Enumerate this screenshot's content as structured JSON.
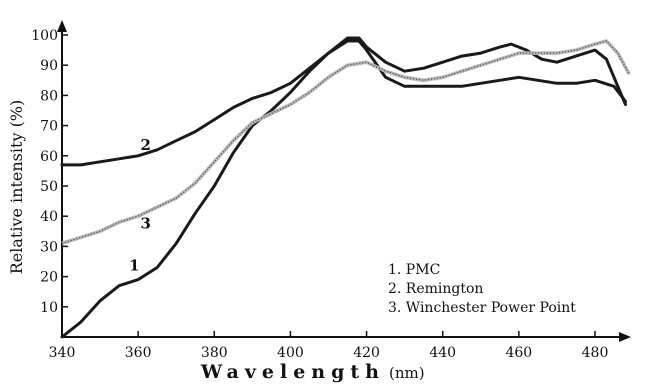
{
  "chart_data": {
    "type": "line",
    "title": "",
    "xlabel": "Wavelength",
    "xlabel_unit": "(nm)",
    "ylabel": "Relative intensity (%)",
    "xlim": [
      340,
      490
    ],
    "ylim": [
      0,
      100
    ],
    "x_ticks": [
      340,
      360,
      380,
      400,
      420,
      440,
      460,
      480
    ],
    "y_ticks": [
      10,
      20,
      30,
      40,
      50,
      60,
      70,
      80,
      90,
      100
    ],
    "grid": false,
    "legend_position": "bottom-right",
    "legend": [
      "1. PMC",
      "2. Remington",
      "3. Winchester Power Point"
    ],
    "series": [
      {
        "name": "1",
        "color": "#1a1a1a",
        "style": "solid",
        "label_point": [
          359,
          22
        ],
        "points": [
          [
            340,
            0
          ],
          [
            345,
            5
          ],
          [
            350,
            12
          ],
          [
            355,
            17
          ],
          [
            360,
            19
          ],
          [
            365,
            23
          ],
          [
            370,
            31
          ],
          [
            375,
            41
          ],
          [
            380,
            50
          ],
          [
            385,
            61
          ],
          [
            390,
            70
          ],
          [
            395,
            75
          ],
          [
            400,
            81
          ],
          [
            405,
            88
          ],
          [
            410,
            94
          ],
          [
            415,
            99
          ],
          [
            418,
            99
          ],
          [
            420,
            96
          ],
          [
            425,
            91
          ],
          [
            430,
            88
          ],
          [
            435,
            89
          ],
          [
            440,
            91
          ],
          [
            445,
            93
          ],
          [
            450,
            94
          ],
          [
            455,
            96
          ],
          [
            458,
            97
          ],
          [
            462,
            95
          ],
          [
            466,
            92
          ],
          [
            470,
            91
          ],
          [
            475,
            93
          ],
          [
            480,
            95
          ],
          [
            483,
            92
          ],
          [
            486,
            83
          ],
          [
            488,
            77
          ]
        ]
      },
      {
        "name": "2",
        "color": "#1a1a1a",
        "style": "solid",
        "label_point": [
          362,
          62
        ],
        "points": [
          [
            340,
            57
          ],
          [
            345,
            57
          ],
          [
            350,
            58
          ],
          [
            355,
            59
          ],
          [
            360,
            60
          ],
          [
            365,
            62
          ],
          [
            370,
            65
          ],
          [
            375,
            68
          ],
          [
            380,
            72
          ],
          [
            385,
            76
          ],
          [
            390,
            79
          ],
          [
            395,
            81
          ],
          [
            400,
            84
          ],
          [
            405,
            89
          ],
          [
            410,
            94
          ],
          [
            415,
            98
          ],
          [
            418,
            98
          ],
          [
            420,
            95
          ],
          [
            425,
            86
          ],
          [
            430,
            83
          ],
          [
            435,
            83
          ],
          [
            440,
            83
          ],
          [
            445,
            83
          ],
          [
            450,
            84
          ],
          [
            455,
            85
          ],
          [
            460,
            86
          ],
          [
            465,
            85
          ],
          [
            470,
            84
          ],
          [
            475,
            84
          ],
          [
            480,
            85
          ],
          [
            485,
            83
          ],
          [
            488,
            78
          ]
        ]
      },
      {
        "name": "3",
        "color": "#8a8a8a",
        "style": "dotted",
        "label_point": [
          362,
          36
        ],
        "points": [
          [
            340,
            31
          ],
          [
            345,
            33
          ],
          [
            350,
            35
          ],
          [
            355,
            38
          ],
          [
            360,
            40
          ],
          [
            365,
            43
          ],
          [
            370,
            46
          ],
          [
            375,
            51
          ],
          [
            380,
            58
          ],
          [
            385,
            65
          ],
          [
            390,
            71
          ],
          [
            395,
            74
          ],
          [
            400,
            77
          ],
          [
            405,
            81
          ],
          [
            410,
            86
          ],
          [
            415,
            90
          ],
          [
            420,
            91
          ],
          [
            425,
            88
          ],
          [
            430,
            86
          ],
          [
            435,
            85
          ],
          [
            440,
            86
          ],
          [
            445,
            88
          ],
          [
            450,
            90
          ],
          [
            455,
            92
          ],
          [
            460,
            94
          ],
          [
            465,
            94
          ],
          [
            470,
            94
          ],
          [
            475,
            95
          ],
          [
            480,
            97
          ],
          [
            483,
            98
          ],
          [
            486,
            94
          ],
          [
            489,
            87
          ]
        ]
      }
    ]
  }
}
